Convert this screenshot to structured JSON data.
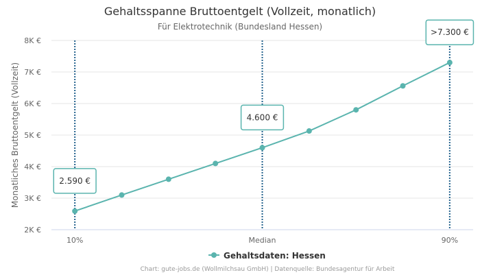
{
  "chart_data": {
    "type": "line",
    "title": "Gehaltsspanne Bruttoentgelt (Vollzeit, monatlich)",
    "subtitle": "Für Elektrotechnik (Bundesland Hessen)",
    "xlabel": "",
    "ylabel": "Monatliches Bruttoentgelt (Vollzeit)",
    "ylim": [
      2000,
      8000
    ],
    "yticks": [
      2000,
      3000,
      4000,
      5000,
      6000,
      7000,
      8000
    ],
    "ytick_labels": [
      "2K €",
      "3K €",
      "4K €",
      "5K €",
      "6K €",
      "7K €",
      "8K €"
    ],
    "x_domain": [
      0,
      9
    ],
    "xtick_positions": [
      0.5,
      4.5,
      8.5
    ],
    "xtick_labels": [
      "10%",
      "Median",
      "90%"
    ],
    "grid": true,
    "series": [
      {
        "name": "Gehaltsdaten: Hessen",
        "color": "#5ab4ae",
        "x": [
          0.5,
          1.5,
          2.5,
          3.5,
          4.5,
          5.5,
          6.5,
          7.5,
          8.5
        ],
        "values": [
          2590,
          3100,
          3600,
          4100,
          4600,
          5130,
          5800,
          6560,
          7300
        ]
      }
    ],
    "reference_lines": [
      {
        "x": 0.5,
        "label": "2.590 €",
        "value": 2590,
        "color": "#1f5f8b"
      },
      {
        "x": 4.5,
        "label": "4.600 €",
        "value": 4600,
        "color": "#1f5f8b"
      },
      {
        "x": 8.5,
        "label": ">7.300 €",
        "value": 7300,
        "color": "#1f5f8b"
      }
    ],
    "legend_position": "bottom-center",
    "credits": "Chart: gute-jobs.de (Wollmilchsau GmbH) | Datenquelle: Bundesagentur für Arbeit"
  }
}
